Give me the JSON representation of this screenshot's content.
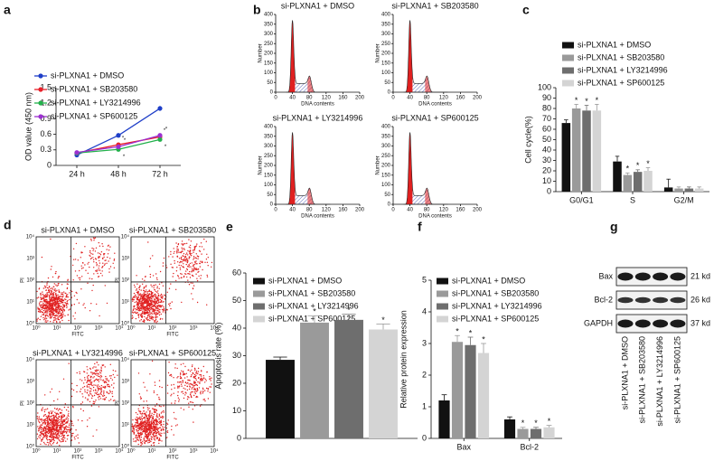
{
  "panel_labels": [
    "a",
    "b",
    "c",
    "d",
    "e",
    "f",
    "g"
  ],
  "chart_data": [
    {
      "type": "line",
      "y_label": "OD value (450 nm)",
      "categories": [
        "24 h",
        "48 h",
        "72 h"
      ],
      "ylim": [
        0,
        1.5
      ],
      "yticks": [
        0,
        0.3,
        0.6,
        0.9,
        1.2,
        1.5
      ],
      "series": [
        {
          "name": "si-PLXNA1 + DMSO",
          "color": "#1f3fc8",
          "values": [
            0.2,
            0.58,
            1.1
          ],
          "errors": [
            0.02,
            0.03,
            0.05
          ],
          "significance": [
            null,
            null,
            null
          ]
        },
        {
          "name": "si-PLXNA1 + SB203580",
          "color": "#e8202a",
          "values": [
            0.24,
            0.4,
            0.55
          ],
          "errors": [
            0.02,
            0.03,
            0.03
          ],
          "significance": [
            null,
            "*",
            "*"
          ]
        },
        {
          "name": "si-PLXNA1 + LY3214996",
          "color": "#22b04b",
          "values": [
            0.24,
            0.31,
            0.5
          ],
          "errors": [
            0.02,
            0.03,
            0.03
          ],
          "significance": [
            null,
            "*",
            "*"
          ]
        },
        {
          "name": "si-PLXNA1 + SP600125",
          "color": "#9b30d0",
          "values": [
            0.25,
            0.36,
            0.58
          ],
          "errors": [
            0.02,
            0.03,
            0.03
          ],
          "significance": [
            null,
            "*",
            "*"
          ]
        }
      ]
    },
    {
      "type": "bar",
      "y_label": "Cell cycle(%)",
      "categories": [
        "G0/G1",
        "S",
        "G2/M"
      ],
      "ylim": [
        0,
        100
      ],
      "yticks": [
        0,
        10,
        20,
        30,
        40,
        50,
        60,
        70,
        80,
        90,
        100
      ],
      "series": [
        {
          "name": "si-PLXNA1 + DMSO",
          "color": "#111111",
          "values": [
            66,
            29,
            4
          ],
          "errors": [
            3,
            5,
            8
          ],
          "significance": [
            null,
            null,
            null
          ]
        },
        {
          "name": "si-PLXNA1 + SB203580",
          "color": "#9a9a9a",
          "values": [
            80,
            16,
            3
          ],
          "errors": [
            4,
            2,
            1.5
          ],
          "significance": [
            "*",
            "*",
            null
          ]
        },
        {
          "name": "si-PLXNA1 + LY3214996",
          "color": "#6e6e6e",
          "values": [
            78,
            19,
            3
          ],
          "errors": [
            5,
            2,
            1.5
          ],
          "significance": [
            "*",
            "*",
            null
          ]
        },
        {
          "name": "si-PLXNA1 + SP600125",
          "color": "#d4d4d4",
          "values": [
            78,
            20,
            3
          ],
          "errors": [
            6,
            3,
            1.5
          ],
          "significance": [
            "*",
            "*",
            null
          ]
        }
      ]
    },
    {
      "type": "bar",
      "y_label": "Apoptosis rate (%)",
      "ylim": [
        0,
        60
      ],
      "yticks": [
        0,
        10,
        20,
        30,
        40,
        50,
        60
      ],
      "series": [
        {
          "name": "si-PLXNA1 + DMSO",
          "color": "#111111",
          "values": [
            28.5
          ],
          "errors": [
            1
          ],
          "significance": [
            null
          ]
        },
        {
          "name": "si-PLXNA1 + SB203580",
          "color": "#9a9a9a",
          "values": [
            42
          ],
          "errors": [
            2.5
          ],
          "significance": [
            "*"
          ]
        },
        {
          "name": "si-PLXNA1 + LY3214996",
          "color": "#6e6e6e",
          "values": [
            43
          ],
          "errors": [
            2
          ],
          "significance": [
            "*"
          ]
        },
        {
          "name": "si-PLXNA1 + SP600125",
          "color": "#d4d4d4",
          "values": [
            39.5
          ],
          "errors": [
            2
          ],
          "significance": [
            "*"
          ]
        }
      ]
    },
    {
      "type": "bar",
      "y_label": "Relative protein expression",
      "categories": [
        "Bax",
        "Bcl-2"
      ],
      "ylim": [
        0,
        5
      ],
      "yticks": [
        0,
        1,
        2,
        3,
        4,
        5
      ],
      "series": [
        {
          "name": "si-PLXNA1 + DMSO",
          "color": "#111111",
          "values": [
            1.2,
            0.6
          ],
          "errors": [
            0.18,
            0.08
          ],
          "significance": [
            null,
            null
          ]
        },
        {
          "name": "si-PLXNA1 + SB203580",
          "color": "#9a9a9a",
          "values": [
            3.05,
            0.3
          ],
          "errors": [
            0.2,
            0.05
          ],
          "significance": [
            "*",
            "*"
          ]
        },
        {
          "name": "si-PLXNA1 + LY3214996",
          "color": "#6e6e6e",
          "values": [
            2.95,
            0.3
          ],
          "errors": [
            0.25,
            0.05
          ],
          "significance": [
            "*",
            "*"
          ]
        },
        {
          "name": "si-PLXNA1 + SP600125",
          "color": "#d4d4d4",
          "values": [
            2.7,
            0.35
          ],
          "errors": [
            0.3,
            0.06
          ],
          "significance": [
            "*",
            "*"
          ]
        }
      ]
    }
  ],
  "flow_histograms": {
    "x_label": "DNA contents",
    "y_label": "Number",
    "xticks": [
      "0",
      "40",
      "80",
      "120",
      "160",
      "200"
    ],
    "yticks": [
      "0",
      "50",
      "100",
      "150",
      "200",
      "250",
      "300",
      "350",
      "400"
    ],
    "titles": [
      "si-PLXNA1 + DMSO",
      "si-PLXNA1 + SB203580",
      "si-PLXNA1 + LY3214996",
      "si-PLXNA1 + SP600125"
    ]
  },
  "dot_plots": {
    "x_label": "FITC",
    "y_label": "PI",
    "ticks": [
      "10⁰",
      "10¹",
      "10²",
      "10³",
      "10⁴"
    ],
    "titles": [
      "si-PLXNA1 + DMSO",
      "si-PLXNA1 + SB203580",
      "si-PLXNA1 + LY3214996",
      "si-PLXNA1 + SP600125"
    ]
  },
  "western_blot": {
    "proteins": [
      {
        "name": "Bax",
        "size": "21 kd"
      },
      {
        "name": "Bcl-2",
        "size": "26 kd"
      },
      {
        "name": "GAPDH",
        "size": "37 kd"
      }
    ],
    "lanes": [
      "si-PLXNA1 + DMSO",
      "si-PLXNA1 + SB203580",
      "si-PLXNA1 + LY3214996",
      "si-PLXNA1 + SP600125"
    ]
  }
}
